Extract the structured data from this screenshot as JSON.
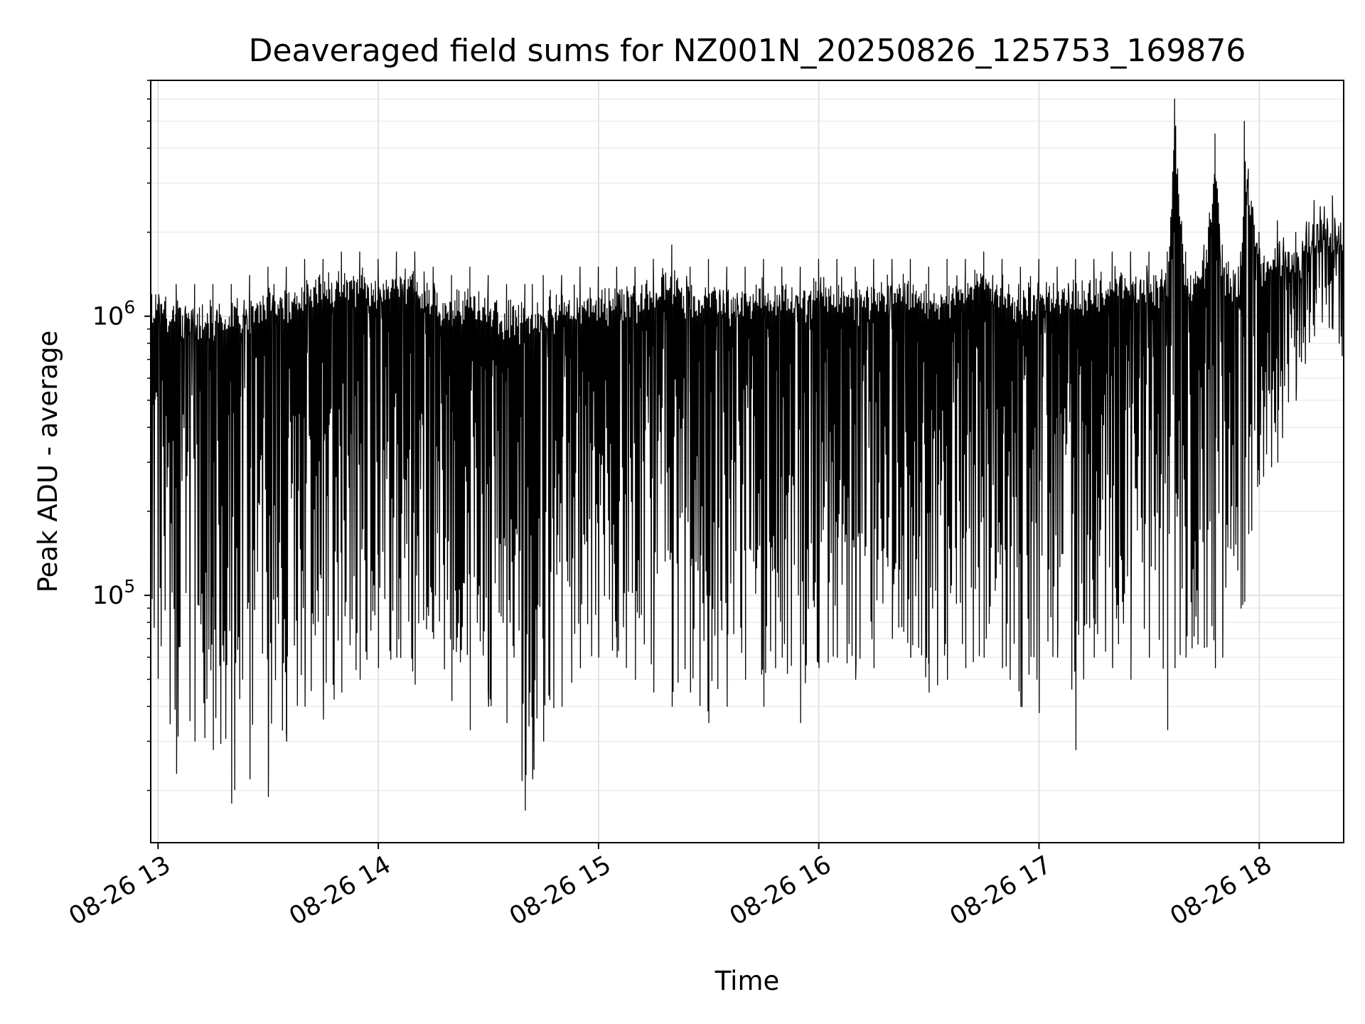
{
  "chart_data": {
    "type": "line",
    "title": "Deaveraged field sums for NZ001N_20250826_125753_169876",
    "xlabel": "Time",
    "ylabel": "Peak ADU - average",
    "yscale": "log",
    "xlim": [
      "2025-08-26 12:58",
      "2025-08-26 18:23"
    ],
    "ylim": [
      13000,
      7000000
    ],
    "grid": true,
    "line_color": "#000000",
    "x_ticks": [
      {
        "label": "08-26 13",
        "time": "2025-08-26 13:00"
      },
      {
        "label": "08-26 14",
        "time": "2025-08-26 14:00"
      },
      {
        "label": "08-26 15",
        "time": "2025-08-26 15:00"
      },
      {
        "label": "08-26 16",
        "time": "2025-08-26 16:00"
      },
      {
        "label": "08-26 17",
        "time": "2025-08-26 17:00"
      },
      {
        "label": "08-26 18",
        "time": "2025-08-26 18:00"
      }
    ],
    "y_ticks": [
      {
        "base": "10",
        "exp": "5",
        "value": 100000
      },
      {
        "base": "10",
        "exp": "6",
        "value": 1000000
      }
    ],
    "series": [
      {
        "x": [
          "2025-08-26 12:58",
          "2025-08-26 13:05",
          "2025-08-26 13:10",
          "2025-08-26 13:15",
          "2025-08-26 13:20",
          "2025-08-26 13:25",
          "2025-08-26 13:30",
          "2025-08-26 13:35",
          "2025-08-26 13:40",
          "2025-08-26 13:45",
          "2025-08-26 13:50",
          "2025-08-26 13:55",
          "2025-08-26 14:00",
          "2025-08-26 14:05",
          "2025-08-26 14:10",
          "2025-08-26 14:15",
          "2025-08-26 14:20",
          "2025-08-26 14:25",
          "2025-08-26 14:30",
          "2025-08-26 14:35",
          "2025-08-26 14:40",
          "2025-08-26 14:42",
          "2025-08-26 14:45",
          "2025-08-26 14:50",
          "2025-08-26 14:55",
          "2025-08-26 15:00",
          "2025-08-26 15:05",
          "2025-08-26 15:10",
          "2025-08-26 15:15",
          "2025-08-26 15:20",
          "2025-08-26 15:25",
          "2025-08-26 15:30",
          "2025-08-26 15:35",
          "2025-08-26 15:40",
          "2025-08-26 15:45",
          "2025-08-26 15:50",
          "2025-08-26 15:55",
          "2025-08-26 16:00",
          "2025-08-26 16:05",
          "2025-08-26 16:10",
          "2025-08-26 16:15",
          "2025-08-26 16:20",
          "2025-08-26 16:25",
          "2025-08-26 16:30",
          "2025-08-26 16:35",
          "2025-08-26 16:40",
          "2025-08-26 16:45",
          "2025-08-26 16:50",
          "2025-08-26 16:55",
          "2025-08-26 17:00",
          "2025-08-26 17:05",
          "2025-08-26 17:10",
          "2025-08-26 17:15",
          "2025-08-26 17:20",
          "2025-08-26 17:25",
          "2025-08-26 17:30",
          "2025-08-26 17:35",
          "2025-08-26 17:37",
          "2025-08-26 17:40",
          "2025-08-26 17:45",
          "2025-08-26 17:48",
          "2025-08-26 17:50",
          "2025-08-26 17:55",
          "2025-08-26 17:56",
          "2025-08-26 18:00",
          "2025-08-26 18:05",
          "2025-08-26 18:10",
          "2025-08-26 18:15",
          "2025-08-26 18:20",
          "2025-08-26 18:23"
        ],
        "y_low": [
          60000,
          23000,
          30000,
          28000,
          18000,
          22000,
          19000,
          30000,
          40000,
          36000,
          45000,
          50000,
          55000,
          60000,
          48000,
          70000,
          42000,
          33000,
          40000,
          35000,
          17000,
          22000,
          30000,
          40000,
          55000,
          60000,
          60000,
          50000,
          45000,
          40000,
          45000,
          35000,
          40000,
          50000,
          40000,
          60000,
          35000,
          55000,
          60000,
          50000,
          55000,
          70000,
          60000,
          45000,
          50000,
          55000,
          60000,
          55000,
          40000,
          38000,
          60000,
          28000,
          60000,
          55000,
          50000,
          60000,
          33000,
          55000,
          60000,
          65000,
          55000,
          60000,
          90000,
          95000,
          250000,
          300000,
          500000,
          850000,
          900000,
          300000
        ],
        "y_high": [
          1500000,
          1300000,
          1300000,
          1300000,
          1300000,
          1400000,
          1500000,
          1500000,
          1600000,
          1600000,
          1700000,
          1700000,
          1600000,
          1700000,
          1700000,
          1500000,
          1400000,
          1500000,
          1400000,
          1300000,
          1300000,
          1300000,
          1400000,
          1400000,
          1500000,
          1500000,
          1500000,
          1500000,
          1600000,
          1800000,
          1500000,
          1600000,
          1500000,
          1500000,
          1600000,
          1500000,
          1500000,
          1600000,
          1600000,
          1500000,
          1600000,
          1600000,
          1600000,
          1500000,
          1600000,
          1600000,
          1700000,
          1600000,
          1500000,
          1600000,
          1500000,
          1600000,
          1600000,
          1700000,
          1700000,
          1700000,
          1700000,
          6000000,
          1700000,
          1800000,
          4500000,
          1800000,
          1700000,
          5000000,
          2000000,
          2200000,
          2000000,
          2600000,
          2700000,
          2500000
        ]
      }
    ]
  }
}
